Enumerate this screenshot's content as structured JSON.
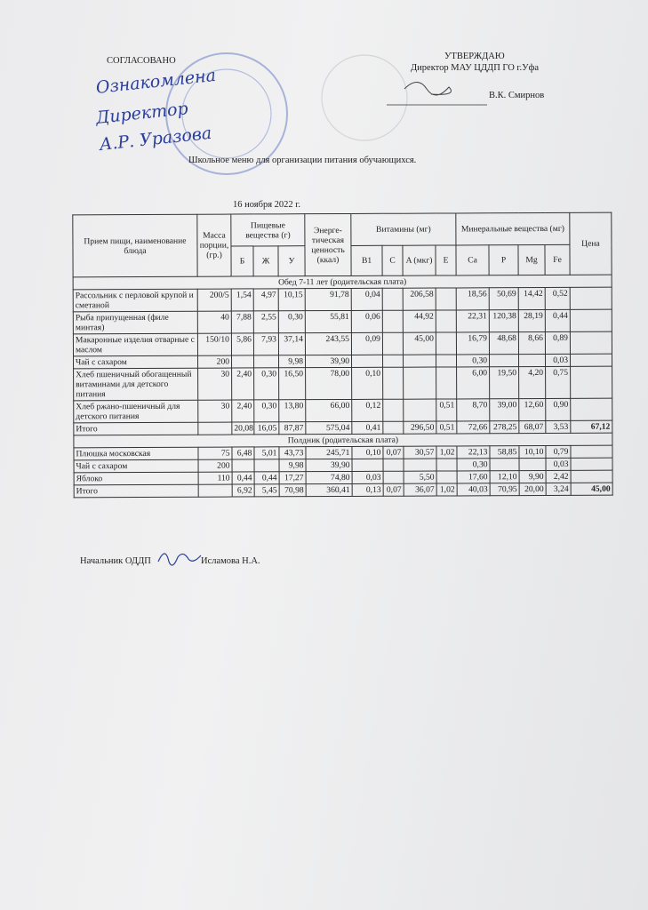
{
  "header": {
    "approved_left": "СОГЛАСОВАНО",
    "handwritten": [
      "Ознакомлена",
      "Директор",
      "А.Р. Уразова"
    ],
    "approved_right": "УТВЕРЖДАЮ",
    "position": "Директор МАУ ЦДДП ГО г.Уфа",
    "signer": "В.К. Смирнов"
  },
  "title": "Школьное меню для организации питания обучающихся.",
  "date": "16 ноября 2022 г.",
  "table": {
    "headers": {
      "name": "Прием пищи, наименование блюда",
      "mass": "Масса порции, (гр.)",
      "nutrients": "Пищевые вещества (г)",
      "energy": "Энерге-тическая ценность (ккал)",
      "vitamins": "Витамины (мг)",
      "minerals": "Минеральные вещества (мг)",
      "price": "Цена",
      "sub": [
        "Б",
        "Ж",
        "У",
        "B1",
        "C",
        "A (мкг)",
        "E",
        "Ca",
        "P",
        "Mg",
        "Fe"
      ]
    },
    "sections": [
      {
        "title": "Обед 7-11 лет (родительская плата)",
        "rows": [
          [
            "Рассольник с перловой крупой и сметаной",
            "200/5",
            "1,54",
            "4,97",
            "10,15",
            "91,78",
            "0,04",
            null,
            "206,58",
            null,
            "18,56",
            "50,69",
            "14,42",
            "0,52",
            null
          ],
          [
            "Рыба припущенная (филе минтая)",
            "40",
            "7,88",
            "2,55",
            "0,30",
            "55,81",
            "0,06",
            null,
            "44,92",
            null,
            "22,31",
            "120,38",
            "28,19",
            "0,44",
            null
          ],
          [
            "Макаронные изделия отварные с маслом",
            "150/10",
            "5,86",
            "7,93",
            "37,14",
            "243,55",
            "0,09",
            null,
            "45,00",
            null,
            "16,79",
            "48,68",
            "8,66",
            "0,89",
            null
          ],
          [
            "Чай с сахаром",
            "200",
            null,
            null,
            "9,98",
            "39,90",
            null,
            null,
            null,
            null,
            "0,30",
            null,
            null,
            "0,03",
            null
          ],
          [
            "Хлеб пшеничный обогащенный витаминами для детского питания",
            "30",
            "2,40",
            "0,30",
            "16,50",
            "78,00",
            "0,10",
            null,
            null,
            null,
            "6,00",
            "19,50",
            "4,20",
            "0,75",
            null
          ],
          [
            "Хлеб ржано-пшеничный для детского питания",
            "30",
            "2,40",
            "0,30",
            "13,80",
            "66,00",
            "0,12",
            null,
            null,
            "0,51",
            "8,70",
            "39,00",
            "12,60",
            "0,90",
            null
          ],
          [
            "Итого",
            null,
            "20,08",
            "16,05",
            "87,87",
            "575,04",
            "0,41",
            null,
            "296,50",
            "0,51",
            "72,66",
            "278,25",
            "68,07",
            "3,53",
            "67,12"
          ]
        ]
      },
      {
        "title": "Полдник (родительская плата)",
        "rows": [
          [
            "Плюшка московская",
            "75",
            "6,48",
            "5,01",
            "43,73",
            "245,71",
            "0,10",
            "0,07",
            "30,57",
            "1,02",
            "22,13",
            "58,85",
            "10,10",
            "0,79",
            null
          ],
          [
            "Чай с сахаром",
            "200",
            null,
            null,
            "9,98",
            "39,90",
            null,
            null,
            null,
            null,
            "0,30",
            null,
            null,
            "0,03",
            null
          ],
          [
            "Яблоко",
            "110",
            "0,44",
            "0,44",
            "17,27",
            "74,80",
            "0,03",
            null,
            "5,50",
            null,
            "17,60",
            "12,10",
            "9,90",
            "2,42",
            null
          ],
          [
            "Итого",
            null,
            "6,92",
            "5,45",
            "70,98",
            "360,41",
            "0,13",
            "0,07",
            "36,07",
            "1,02",
            "40,03",
            "70,95",
            "20,00",
            "3,24",
            "45,00"
          ]
        ]
      }
    ]
  },
  "footer": {
    "position": "Начальник ОДДП",
    "name": "Исламова Н.А."
  }
}
